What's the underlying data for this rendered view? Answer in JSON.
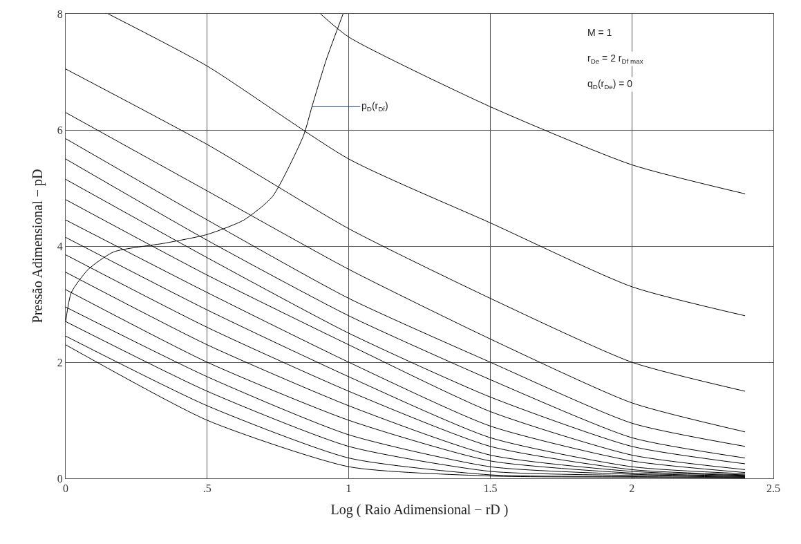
{
  "chart_data": {
    "type": "line",
    "xlabel": "Log ( Raio Adimensional − rD )",
    "ylabel": "Pressão Adimensional − pD",
    "xlim": [
      0,
      2.5
    ],
    "ylim": [
      0,
      8
    ],
    "xticks": [
      0,
      {
        "value": 0.5,
        "label": ".5"
      },
      1,
      1.5,
      2,
      2.5
    ],
    "yticks": [
      0,
      2,
      4,
      6,
      8
    ],
    "grid": true,
    "line_style": "solid",
    "marker": "none",
    "x": [
      0,
      0.5,
      1,
      1.5,
      2,
      2.4
    ],
    "series": [
      {
        "color": "#000000",
        "x": [
          0.9,
          1,
          1.5,
          2,
          2.4
        ],
        "values": [
          8.0,
          7.6,
          6.4,
          5.4,
          4.9
        ]
      },
      {
        "color": "#000000",
        "x": [
          0.15,
          0.5,
          1,
          1.5,
          2,
          2.4
        ],
        "values": [
          8.0,
          7.1,
          5.5,
          4.4,
          3.3,
          2.8
        ]
      },
      {
        "color": "#000000",
        "values": [
          7.05,
          5.75,
          4.3,
          3.1,
          2.0,
          1.5
        ]
      },
      {
        "color": "#000000",
        "values": [
          6.3,
          4.95,
          3.6,
          2.4,
          1.3,
          0.8
        ]
      },
      {
        "color": "#000000",
        "values": [
          5.85,
          4.45,
          3.1,
          2.0,
          0.95,
          0.55
        ]
      },
      {
        "color": "#000000",
        "values": [
          5.5,
          4.1,
          2.8,
          1.7,
          0.7,
          0.35
        ]
      },
      {
        "color": "#000000",
        "values": [
          5.15,
          3.8,
          2.5,
          1.4,
          0.55,
          0.25
        ]
      },
      {
        "color": "#000000",
        "values": [
          4.8,
          3.5,
          2.3,
          1.15,
          0.4,
          0.15
        ]
      },
      {
        "color": "#000000",
        "values": [
          4.45,
          3.2,
          2.0,
          0.9,
          0.3,
          0.1
        ]
      },
      {
        "color": "#000000",
        "values": [
          4.15,
          2.9,
          1.75,
          0.7,
          0.2,
          0.08
        ]
      },
      {
        "color": "#000000",
        "values": [
          3.85,
          2.6,
          1.5,
          0.55,
          0.15,
          0.06
        ]
      },
      {
        "color": "#000000",
        "values": [
          3.55,
          2.3,
          1.25,
          0.4,
          0.12,
          0.05
        ]
      },
      {
        "color": "#000000",
        "values": [
          3.25,
          2.0,
          1.0,
          0.3,
          0.09,
          0.04
        ]
      },
      {
        "color": "#000000",
        "values": [
          2.95,
          1.75,
          0.75,
          0.2,
          0.07,
          0.03
        ]
      },
      {
        "color": "#000000",
        "values": [
          2.7,
          1.5,
          0.55,
          0.12,
          0.05,
          0.02
        ]
      },
      {
        "color": "#000000",
        "values": [
          2.45,
          1.25,
          0.35,
          0.06,
          0.03,
          0.01
        ]
      },
      {
        "color": "#000000",
        "values": [
          2.3,
          1.0,
          0.2,
          0.04,
          0.02,
          0.01
        ]
      },
      {
        "color": "#000000",
        "x": [
          0,
          0.02,
          0.08,
          0.17,
          0.35,
          0.5,
          0.63,
          0.73,
          0.84,
          0.87,
          0.92,
          0.98
        ],
        "values": [
          2.7,
          3.2,
          3.6,
          3.9,
          4.05,
          4.2,
          4.45,
          4.85,
          5.9,
          6.4,
          7.2,
          8.0
        ]
      }
    ],
    "annotations": [
      {
        "text": "p$_{D}$(r$_{Df}$)",
        "x": 0.87,
        "y": 6.4
      },
      "M = 1",
      "r$_{De}$ = 2 r$_{Df max}$",
      "q$_{D}$(r$_{De}$) = 0"
    ]
  }
}
